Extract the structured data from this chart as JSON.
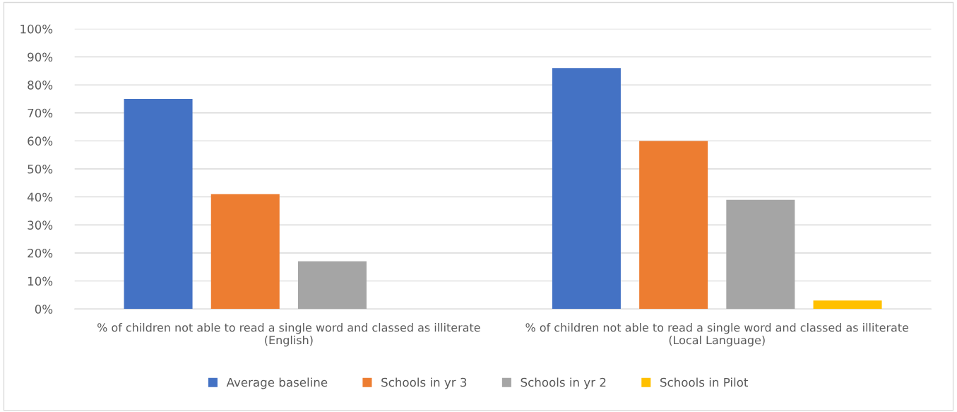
{
  "chart_data": {
    "type": "bar",
    "categories": [
      "% of children not able to read a single word and classed as illiterate (English)",
      "% of children not able to read a single word and classed as illiterate (Local Language)"
    ],
    "series": [
      {
        "name": "Average baseline",
        "color": "#4472c4",
        "values": [
          75,
          86
        ]
      },
      {
        "name": "Schools in yr 3",
        "color": "#ed7d31",
        "values": [
          41,
          60
        ]
      },
      {
        "name": "Schools in yr 2",
        "color": "#a5a5a5",
        "values": [
          17,
          39
        ]
      },
      {
        "name": "Schools in Pilot",
        "color": "#ffc000",
        "values": [
          null,
          3
        ]
      }
    ],
    "ylim": [
      0,
      100
    ],
    "yticks": [
      {
        "value": 0,
        "label": "0%"
      },
      {
        "value": 10,
        "label": "10%"
      },
      {
        "value": 20,
        "label": "20%"
      },
      {
        "value": 30,
        "label": "30%"
      },
      {
        "value": 40,
        "label": "40%"
      },
      {
        "value": 50,
        "label": "50%"
      },
      {
        "value": 60,
        "label": "60%"
      },
      {
        "value": 70,
        "label": "70%"
      },
      {
        "value": 80,
        "label": "80%"
      },
      {
        "value": 90,
        "label": "90%"
      },
      {
        "value": 100,
        "label": "100%"
      }
    ],
    "grid": "y",
    "legend": "bottom"
  }
}
